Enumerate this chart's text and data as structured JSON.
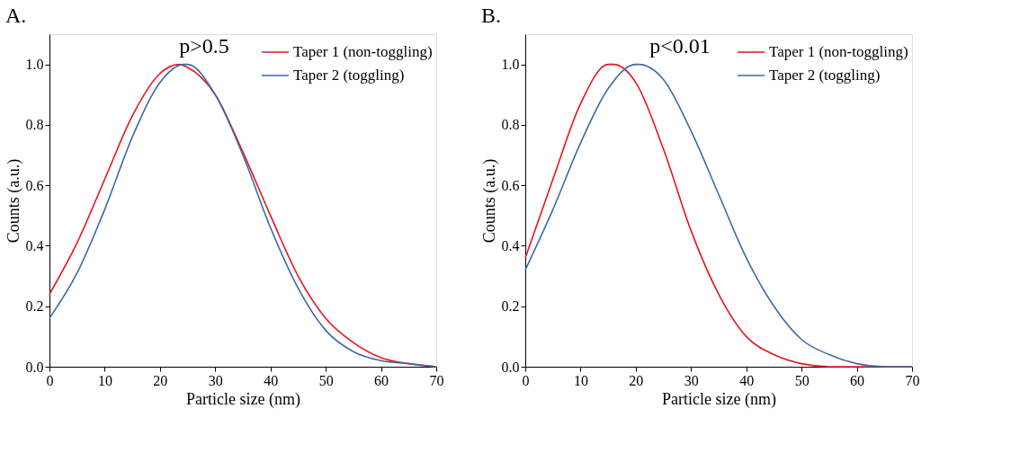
{
  "chart_data": [
    {
      "type": "line",
      "title": "A.",
      "xlabel": "Particle size (nm)",
      "ylabel": "Counts (a.u.)",
      "annotations": [
        "p>0.5"
      ],
      "legend": "top right",
      "grid": false,
      "marker": "none",
      "line_style": "solid",
      "xlim": [
        0,
        70
      ],
      "ylim": [
        0,
        1.1
      ],
      "xticks": [
        0,
        10,
        20,
        30,
        40,
        50,
        60,
        70
      ],
      "yticks": [
        {
          "value": 0,
          "label": "0.0"
        },
        {
          "value": 0.2,
          "label": "0.2"
        },
        {
          "value": 0.4,
          "label": "0.4"
        },
        {
          "value": 0.6,
          "label": "0.6"
        },
        {
          "value": 0.8,
          "label": "0.8"
        },
        {
          "value": 1,
          "label": "1.0"
        }
      ],
      "series": [
        {
          "name": "Taper 1 (non-toggling)",
          "color": "#e8141c",
          "x": [
            0,
            5,
            10,
            15,
            20,
            23.5,
            25,
            30,
            35,
            40,
            45,
            50,
            55,
            60,
            65,
            70
          ],
          "values": [
            0.24,
            0.41,
            0.62,
            0.83,
            0.97,
            1.0,
            0.99,
            0.9,
            0.71,
            0.5,
            0.3,
            0.16,
            0.08,
            0.03,
            0.01,
            0.0
          ]
        },
        {
          "name": "Taper 2 (toggling)",
          "color": "#3d6aa8",
          "x": [
            0,
            5,
            10,
            15,
            20,
            24.3,
            25,
            30,
            35,
            40,
            45,
            50,
            55,
            60,
            65,
            70
          ],
          "values": [
            0.16,
            0.31,
            0.52,
            0.76,
            0.94,
            1.0,
            1.0,
            0.9,
            0.7,
            0.46,
            0.26,
            0.12,
            0.05,
            0.02,
            0.01,
            0.0
          ]
        }
      ]
    },
    {
      "type": "line",
      "title": "B.",
      "xlabel": "Particle size (nm)",
      "ylabel": "Counts (a.u.)",
      "annotations": [
        "p<0.01"
      ],
      "legend": "top right",
      "grid": false,
      "marker": "none",
      "line_style": "solid",
      "xlim": [
        0,
        70
      ],
      "ylim": [
        0,
        1.1
      ],
      "xticks": [
        0,
        10,
        20,
        30,
        40,
        50,
        60,
        70
      ],
      "yticks": [
        {
          "value": 0,
          "label": "0.0"
        },
        {
          "value": 0.2,
          "label": "0.2"
        },
        {
          "value": 0.4,
          "label": "0.4"
        },
        {
          "value": 0.6,
          "label": "0.6"
        },
        {
          "value": 0.8,
          "label": "0.8"
        },
        {
          "value": 1,
          "label": "1.0"
        }
      ],
      "series": [
        {
          "name": "Taper 1 (non-toggling)",
          "color": "#e8141c",
          "x": [
            0,
            5,
            10,
            15,
            16,
            20,
            25,
            30,
            35,
            40,
            45,
            50,
            55,
            60,
            65,
            70
          ],
          "values": [
            0.36,
            0.62,
            0.87,
            1.0,
            1.0,
            0.94,
            0.72,
            0.45,
            0.24,
            0.1,
            0.04,
            0.01,
            0.0,
            0.0,
            0.0,
            0.0
          ]
        },
        {
          "name": "Taper 2 (toggling)",
          "color": "#3d6aa8",
          "x": [
            0,
            5,
            10,
            15,
            20,
            20.5,
            25,
            30,
            35,
            40,
            45,
            50,
            55,
            60,
            65,
            70
          ],
          "values": [
            0.32,
            0.52,
            0.74,
            0.92,
            1.0,
            1.0,
            0.95,
            0.78,
            0.57,
            0.36,
            0.2,
            0.09,
            0.04,
            0.01,
            0.0,
            0.0
          ]
        }
      ]
    }
  ]
}
